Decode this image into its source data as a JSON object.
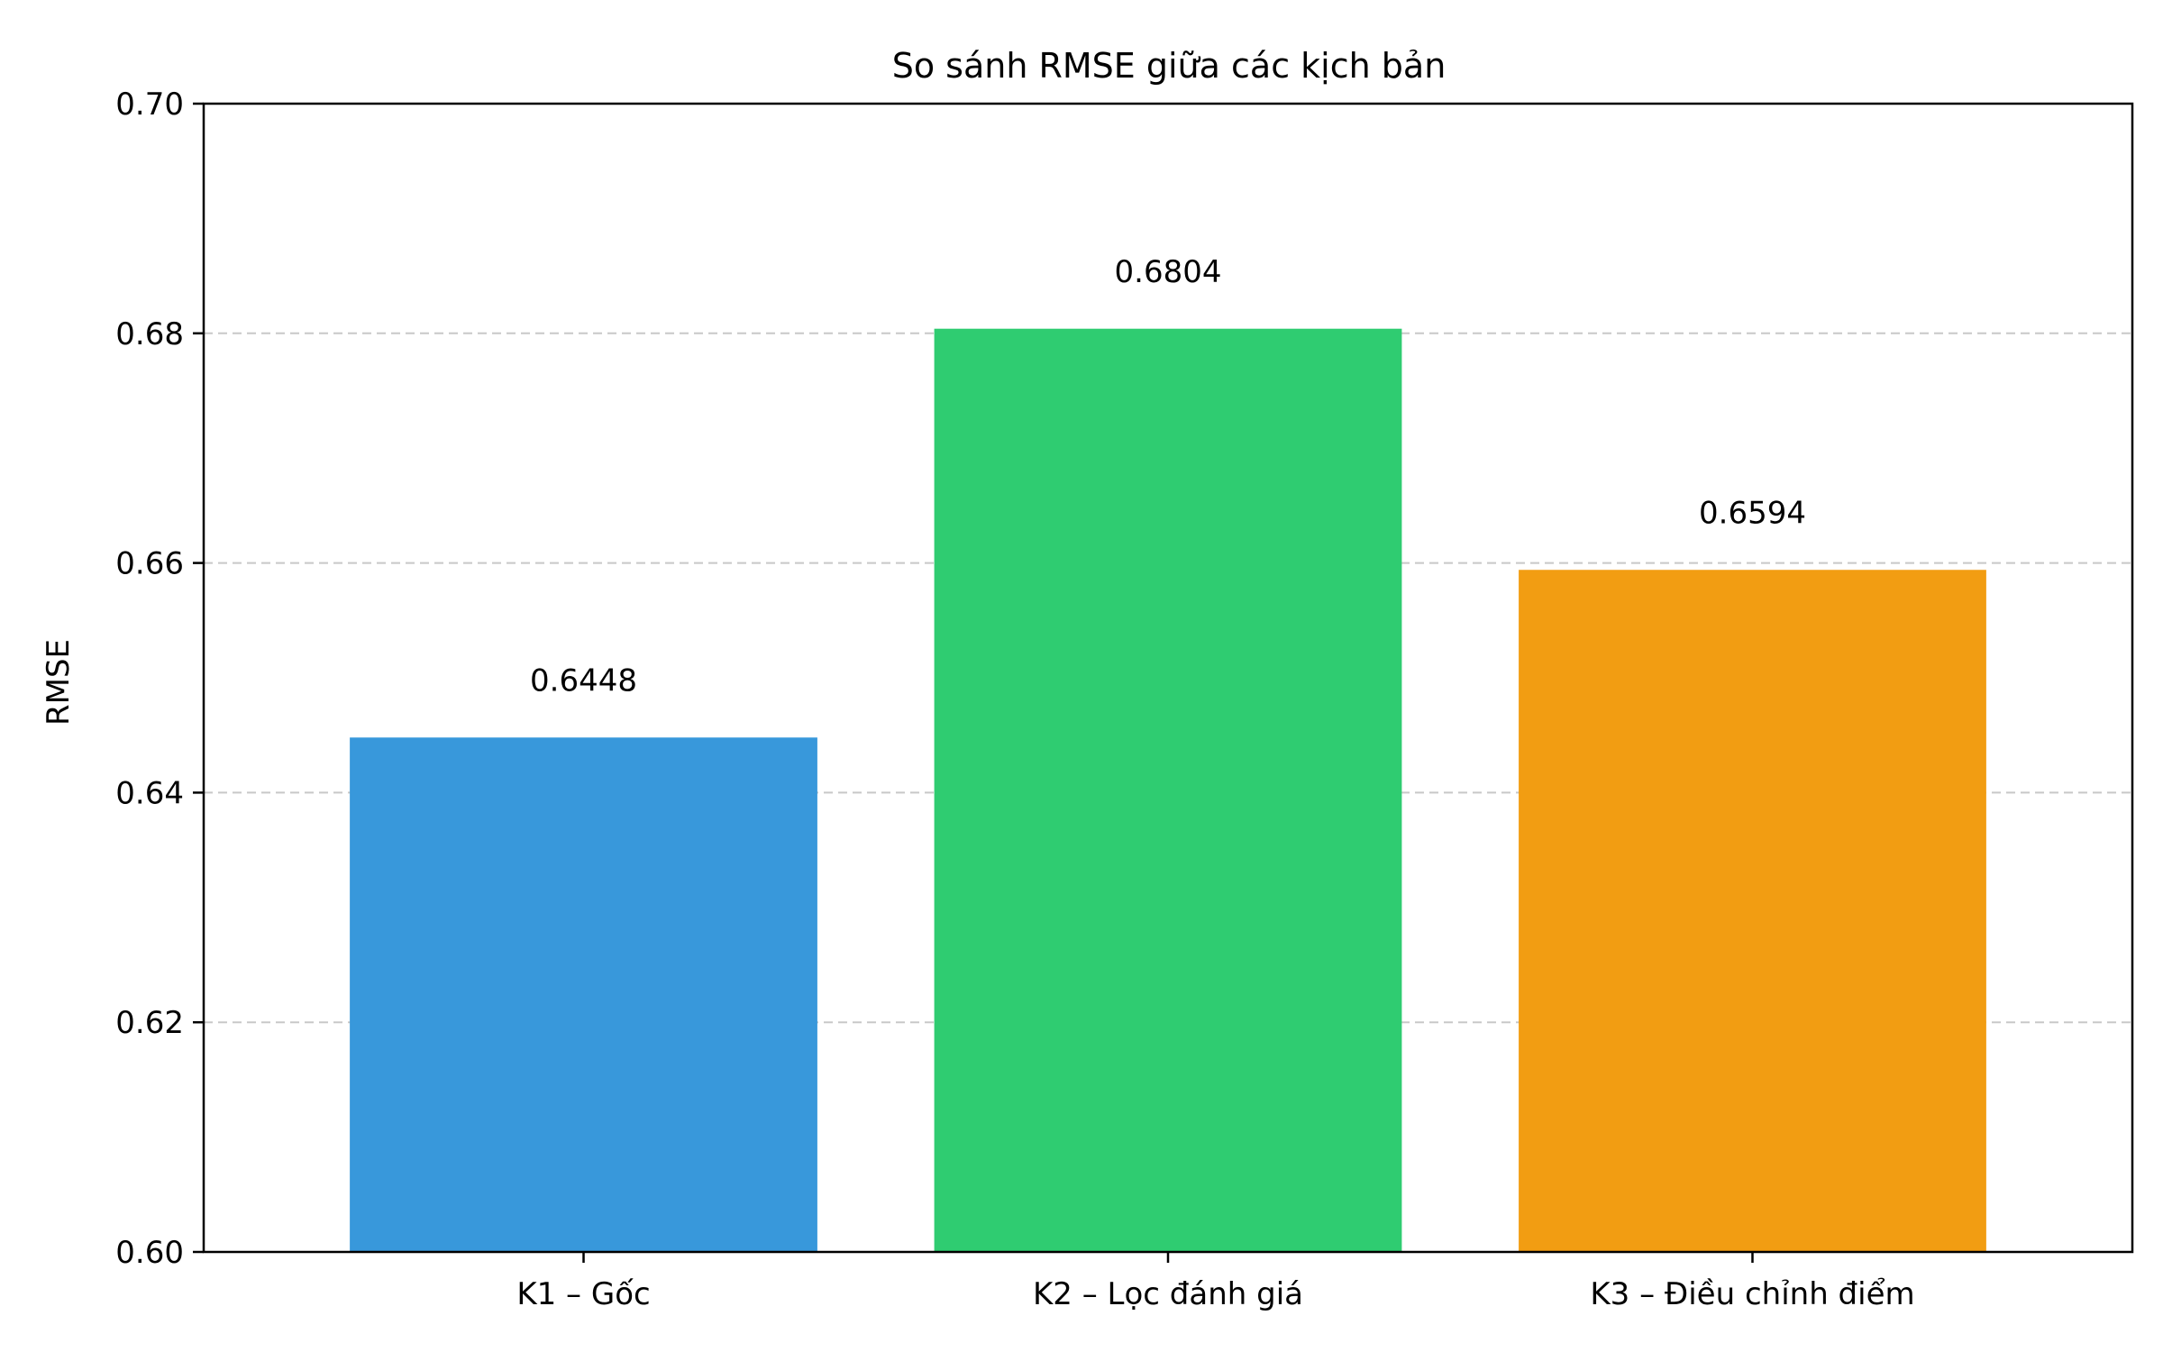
{
  "chart_data": {
    "type": "bar",
    "title": "So sánh RMSE giữa các kịch bản",
    "xlabel": "",
    "ylabel": "RMSE",
    "categories": [
      "K1 – Gốc",
      "K2 – Lọc đánh giá",
      "K3 – Điều chỉnh điểm"
    ],
    "values": [
      0.6448,
      0.6804,
      0.6594
    ],
    "data_labels": [
      "0.6448",
      "0.6804",
      "0.6594"
    ],
    "colors": [
      "#3898db",
      "#2fcc71",
      "#f29d12"
    ],
    "ylim": [
      0.6,
      0.7
    ],
    "yticks": [
      0.6,
      0.62,
      0.64,
      0.66,
      0.68,
      0.7
    ],
    "ytick_labels": [
      "0.60",
      "0.62",
      "0.64",
      "0.66",
      "0.68",
      "0.70"
    ],
    "grid": "y-dashed"
  }
}
